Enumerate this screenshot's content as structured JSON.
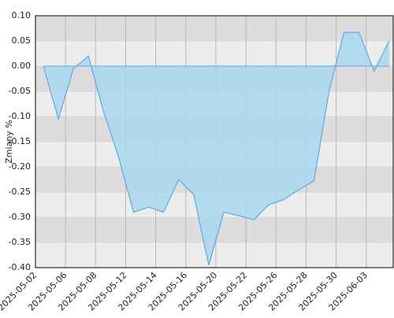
{
  "chart_data": {
    "type": "area",
    "y_label": "Zmiany %",
    "categories": [
      "2025-05-02",
      null,
      "2025-05-06",
      null,
      "2025-05-08",
      null,
      "2025-05-12",
      null,
      "2025-05-14",
      null,
      "2025-05-16",
      null,
      "2025-05-20",
      null,
      "2025-05-22",
      null,
      "2025-05-26",
      null,
      "2025-05-28",
      null,
      "2025-05-30",
      null,
      "2025-06-03",
      null
    ],
    "values": [
      0,
      -0.105,
      -0.005,
      0.02,
      -0.09,
      -0.18,
      -0.29,
      -0.28,
      -0.29,
      -0.225,
      -0.255,
      -0.395,
      -0.29,
      -0.297,
      -0.305,
      -0.275,
      -0.265,
      -0.245,
      -0.228,
      -0.05,
      0.067,
      0.067,
      -0.01,
      0.05
    ],
    "color": "#5aaae6",
    "fill": "#a9d8ee",
    "ylim": [
      -0.4,
      0.1
    ],
    "yticks": [
      {
        "value": -0.4,
        "label": "-0.40"
      },
      {
        "value": -0.35,
        "label": "-0.35"
      },
      {
        "value": -0.3,
        "label": "-0.30"
      },
      {
        "value": -0.25,
        "label": "-0.25"
      },
      {
        "value": -0.2,
        "label": "-0.20"
      },
      {
        "value": -0.15,
        "label": "-0.15"
      },
      {
        "value": -0.1,
        "label": "-0.10"
      },
      {
        "value": -0.05,
        "label": "-0.05"
      },
      {
        "value": 0,
        "label": "0.00"
      },
      {
        "value": 0.05,
        "label": "0.05"
      },
      {
        "value": 0.1,
        "label": "0.10"
      }
    ],
    "grid": true
  }
}
